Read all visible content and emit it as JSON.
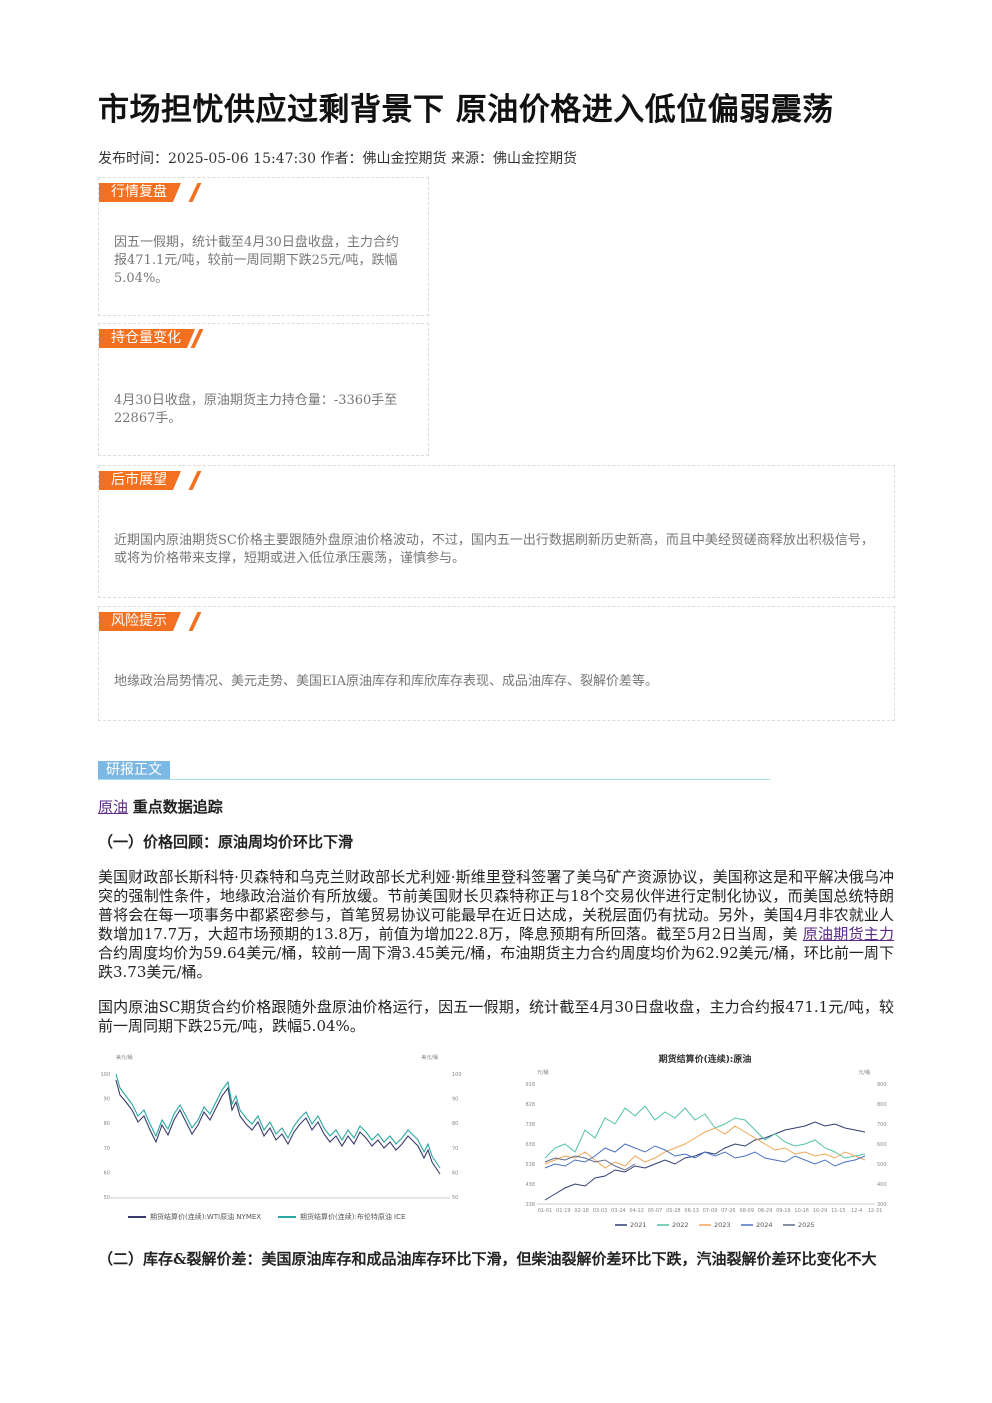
{
  "header": {
    "title": "市场担忧供应过剩背景下 原油价格进入低位偏弱震荡",
    "meta": "发布时间：2025-05-06 15:47:30 作者：佛山金控期货 来源：佛山金控期货"
  },
  "sections": [
    {
      "tag": "行情复盘",
      "text": "因五一假期，统计截至4月30日盘收盘，主力合约报471.1元/吨，较前一周同期下跌25元/吨，跌幅5.04%。"
    },
    {
      "tag": "持仓量变化",
      "text": "4月30日收盘，原油期货主力持仓量：-3360手至22867手。"
    },
    {
      "tag": "后市展望",
      "text": "近期国内原油期货SC价格主要跟随外盘原油价格波动，不过，国内五一出行数据刷新历史新高，而且中美经贸磋商释放出积极信号，或将为价格带来支撑，短期或进入低位承压震荡，谨慎参与。"
    },
    {
      "tag": "风险提示",
      "text": "地缘政治局势情况、美元走势、美国EIA原油库存和库欣库存表现、成品油库存、裂解价差等。"
    }
  ],
  "body": {
    "tag": "研报正文",
    "link": "原油",
    "link_suffix": "重点数据追踪",
    "heading1": "（一）价格回顾：原油周均价环比下滑",
    "p1_before": "美国财政部长斯科特·贝森特和乌克兰财政部长尤利娅·斯维里登科签署了美乌矿产资源协议，美国称这是和平解决俄乌冲突的强制性条件，地缘政治溢价有所放缓。节前美国财长贝森特称正与18个交易伙伴进行定制化协议，而美国总统特朗普将会在每一项事务中都紧密参与，首笔贸易协议可能最早在近日达成，关税层面仍有扰动。另外，美国4月非农就业人数增加17.7万，大超市场预期的13.8万，前值为增加22.8万，降息预期有所回落。截至5月2日当周，美",
    "p1_link": "原油期货主力",
    "p1_after": "合约周度均价为59.64美元/桶，较前一周下滑3.45美元/桶，布油期货主力合约周度均价为62.92美元/桶，环比前一周下跌3.73美元/桶。",
    "p2": "国内原油SC期货合约价格跟随外盘原油价格运行，因五一假期，统计截至4月30日盘收盘，主力合约报471.1元/吨，较前一周同期下跌25元/吨，跌幅5.04%。",
    "heading2": "（二）库存&裂解价差：美国原油库存和成品油库存环比下滑，但柴油裂解价差环比下跌，汽油裂解价差环比变化不大"
  },
  "figures": [
    {
      "left_unit": "美元/桶",
      "right_unit": "美元/桶",
      "left_ticks": [
        100,
        90,
        80,
        70,
        60,
        50
      ],
      "right_ticks": [
        100,
        90,
        80,
        70,
        60,
        50
      ],
      "legend": [
        "期货结算价(连续):WTI原油 NYMEX",
        "期货结算价(连续):布伦特原油 ICE"
      ]
    },
    {
      "title": "期货结算价(连续):原油",
      "left_unit": "元/桶",
      "right_unit": "元/桶",
      "left_ticks": [
        918,
        828,
        738,
        638,
        538,
        438,
        338
      ],
      "right_ticks": [
        900,
        800,
        700,
        600,
        500,
        400,
        300
      ],
      "x_labels": [
        "01-01",
        "01-19",
        "02-18",
        "03-03",
        "03-24",
        "04-12",
        "05-07",
        "05-28",
        "06-13",
        "07-09",
        "07-26",
        "08-09",
        "08-29",
        "09-19",
        "10-16",
        "10-29",
        "11-15",
        "12-4",
        "12-31"
      ],
      "legend": [
        "2021",
        "2022",
        "2023",
        "2024",
        "2025"
      ]
    }
  ]
}
